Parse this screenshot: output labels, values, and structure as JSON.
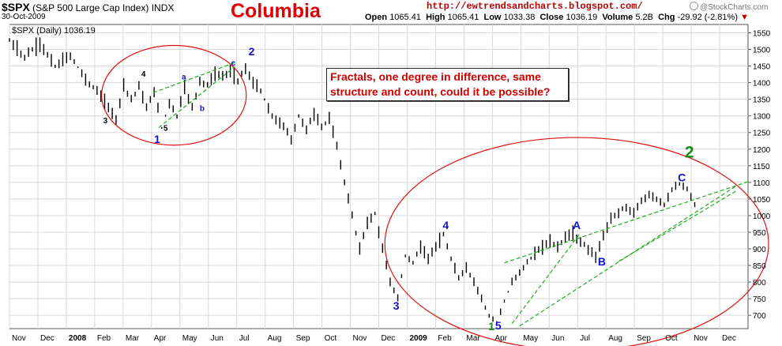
{
  "header": {
    "symbol": "$SPX",
    "symbol_desc": "(S&P 500 Large Cap Index) INDX",
    "date": "30-Oct-2009",
    "title": "Columbia",
    "url": "http://ewtrendsandcharts.blogspot.com/",
    "watermark": "@StockCharts.com",
    "ohlc": {
      "open_label": "Open",
      "open": "1065.41",
      "high_label": "High",
      "high": "1065.41",
      "low_label": "Low",
      "low": "1033.38",
      "close_label": "Close",
      "close": "1036.19",
      "volume_label": "Volume",
      "volume": "5.2B",
      "chg_label": "Chg",
      "chg": "-29.92 (-2.81%)"
    }
  },
  "annotation_note": "Fractals, one degree in difference, same structure and count, could it be possible?",
  "colors": {
    "price_bars": "#000000",
    "ellipse": "#e01010",
    "trendline": "#22aa22",
    "wave_blue": "#1010cc",
    "wave_green": "#1a8a1a",
    "wave_black": "#000000",
    "title": "#e00000",
    "grid": "#d8d8d8"
  },
  "chart_data": {
    "type": "ohlc",
    "series_label": "$SPX (Daily) 1036.19",
    "x_labels": [
      "Nov",
      "Dec",
      "2008",
      "Feb",
      "Mar",
      "Apr",
      "May",
      "Jun",
      "Jul",
      "Aug",
      "Sep",
      "Oct",
      "Nov",
      "Dec",
      "2009",
      "Feb",
      "Mar",
      "Apr",
      "May",
      "Jun",
      "Jul",
      "Aug",
      "Sep",
      "Oct",
      "Nov",
      "Dec"
    ],
    "x_bold": [
      "2008",
      "2009"
    ],
    "y_ticks": [
      700,
      750,
      800,
      850,
      900,
      950,
      1000,
      1050,
      1100,
      1150,
      1200,
      1250,
      1300,
      1350,
      1400,
      1450,
      1500,
      1550
    ],
    "ylim": [
      660,
      1575
    ],
    "grid": true,
    "anchors": [
      {
        "t": 0,
        "v": 1525
      },
      {
        "t": 2,
        "v": 1478
      },
      {
        "t": 4,
        "v": 1518
      },
      {
        "t": 6,
        "v": 1448
      },
      {
        "t": 8,
        "v": 1482
      },
      {
        "t": 10,
        "v": 1410
      },
      {
        "t": 12,
        "v": 1360
      },
      {
        "t": 14,
        "v": 1290
      },
      {
        "t": 15,
        "v": 1395
      },
      {
        "t": 16,
        "v": 1350
      },
      {
        "t": 17,
        "v": 1390
      },
      {
        "t": 18,
        "v": 1322
      },
      {
        "t": 19,
        "v": 1375
      },
      {
        "t": 20,
        "v": 1265
      },
      {
        "t": 21,
        "v": 1340
      },
      {
        "t": 22,
        "v": 1300
      },
      {
        "t": 23,
        "v": 1385
      },
      {
        "t": 24,
        "v": 1325
      },
      {
        "t": 25,
        "v": 1405
      },
      {
        "t": 26,
        "v": 1395
      },
      {
        "t": 27,
        "v": 1425
      },
      {
        "t": 28,
        "v": 1420
      },
      {
        "t": 29,
        "v": 1432
      },
      {
        "t": 30,
        "v": 1410
      },
      {
        "t": 31,
        "v": 1440
      },
      {
        "t": 32,
        "v": 1400
      },
      {
        "t": 33,
        "v": 1375
      },
      {
        "t": 34,
        "v": 1320
      },
      {
        "t": 35,
        "v": 1285
      },
      {
        "t": 36,
        "v": 1270
      },
      {
        "t": 37,
        "v": 1230
      },
      {
        "t": 38,
        "v": 1300
      },
      {
        "t": 39,
        "v": 1260
      },
      {
        "t": 40,
        "v": 1305
      },
      {
        "t": 41,
        "v": 1270
      },
      {
        "t": 42,
        "v": 1290
      },
      {
        "t": 43,
        "v": 1210
      },
      {
        "t": 44,
        "v": 1100
      },
      {
        "t": 45,
        "v": 1000
      },
      {
        "t": 46,
        "v": 900
      },
      {
        "t": 47,
        "v": 980
      },
      {
        "t": 48,
        "v": 1005
      },
      {
        "t": 49,
        "v": 900
      },
      {
        "t": 50,
        "v": 800
      },
      {
        "t": 51,
        "v": 752
      },
      {
        "t": 52,
        "v": 880
      },
      {
        "t": 53,
        "v": 860
      },
      {
        "t": 54,
        "v": 905
      },
      {
        "t": 55,
        "v": 870
      },
      {
        "t": 56,
        "v": 910
      },
      {
        "t": 57,
        "v": 940
      },
      {
        "t": 58,
        "v": 870
      },
      {
        "t": 59,
        "v": 810
      },
      {
        "t": 60,
        "v": 845
      },
      {
        "t": 61,
        "v": 800
      },
      {
        "t": 62,
        "v": 750
      },
      {
        "t": 63,
        "v": 700
      },
      {
        "t": 64,
        "v": 680
      },
      {
        "t": 65,
        "v": 740
      },
      {
        "t": 66,
        "v": 800
      },
      {
        "t": 67,
        "v": 830
      },
      {
        "t": 68,
        "v": 860
      },
      {
        "t": 69,
        "v": 885
      },
      {
        "t": 70,
        "v": 905
      },
      {
        "t": 71,
        "v": 925
      },
      {
        "t": 72,
        "v": 905
      },
      {
        "t": 73,
        "v": 935
      },
      {
        "t": 74,
        "v": 945
      },
      {
        "t": 75,
        "v": 920
      },
      {
        "t": 76,
        "v": 900
      },
      {
        "t": 77,
        "v": 875
      },
      {
        "t": 78,
        "v": 940
      },
      {
        "t": 79,
        "v": 990
      },
      {
        "t": 80,
        "v": 1010
      },
      {
        "t": 81,
        "v": 1025
      },
      {
        "t": 82,
        "v": 1005
      },
      {
        "t": 83,
        "v": 1045
      },
      {
        "t": 84,
        "v": 1065
      },
      {
        "t": 85,
        "v": 1050
      },
      {
        "t": 86,
        "v": 1035
      },
      {
        "t": 87,
        "v": 1075
      },
      {
        "t": 88,
        "v": 1095
      },
      {
        "t": 89,
        "v": 1080
      },
      {
        "t": 90,
        "v": 1036
      }
    ],
    "wave_labels": [
      {
        "text": "1",
        "t": 19.4,
        "v": 1218,
        "color": "blue",
        "size": "large"
      },
      {
        "text": "2",
        "t": 31.8,
        "v": 1482,
        "color": "blue",
        "size": "large"
      },
      {
        "text": "3",
        "t": 12.6,
        "v": 1278,
        "color": "black",
        "size": "small"
      },
      {
        "text": "4",
        "t": 17.6,
        "v": 1418,
        "color": "black",
        "size": "small"
      },
      {
        "text": "5",
        "t": 20.5,
        "v": 1255,
        "color": "black",
        "size": "small"
      },
      {
        "text": "a",
        "t": 22.9,
        "v": 1410,
        "color": "blue",
        "size": "small"
      },
      {
        "text": "b",
        "t": 25.3,
        "v": 1315,
        "color": "blue",
        "size": "small"
      },
      {
        "text": "c",
        "t": 29.4,
        "v": 1452,
        "color": "blue",
        "size": "small"
      },
      {
        "text": "3",
        "t": 50.8,
        "v": 717,
        "color": "blue",
        "size": "large"
      },
      {
        "text": "4",
        "t": 57.3,
        "v": 960,
        "color": "blue",
        "size": "large"
      },
      {
        "text": "1",
        "t": 63.3,
        "v": 655,
        "color": "green",
        "size": "large"
      },
      {
        "text": "5",
        "t": 64.2,
        "v": 658,
        "color": "blue",
        "size": "large"
      },
      {
        "text": "A",
        "t": 74.5,
        "v": 960,
        "color": "blue",
        "size": "large"
      },
      {
        "text": "B",
        "t": 77.8,
        "v": 850,
        "color": "blue",
        "size": "large"
      },
      {
        "text": "C",
        "t": 88.3,
        "v": 1103,
        "color": "blue",
        "size": "large"
      },
      {
        "text": "2",
        "t": 89.3,
        "v": 1175,
        "color": "green",
        "size": "xlarge"
      }
    ],
    "trendlines": [
      {
        "t1": 18.9,
        "v1": 1370,
        "t2": 29.8,
        "v2": 1462
      },
      {
        "t1": 19.6,
        "v1": 1265,
        "t2": 29.6,
        "v2": 1448
      },
      {
        "t1": 65.0,
        "v1": 858,
        "t2": 97.0,
        "v2": 1102
      },
      {
        "t1": 66.0,
        "v1": 675,
        "t2": 75.0,
        "v2": 948
      },
      {
        "t1": 67.0,
        "v1": 668,
        "t2": 95.5,
        "v2": 1090
      },
      {
        "t1": 80.0,
        "v1": 862,
        "t2": 95.5,
        "v2": 1075
      }
    ],
    "ellipses": [
      {
        "cx": 21.6,
        "cy": 1362,
        "rx": 9.5,
        "ry": 150
      },
      {
        "cx": 74.5,
        "cy": 915,
        "rx": 25.2,
        "ry": 320
      }
    ]
  }
}
